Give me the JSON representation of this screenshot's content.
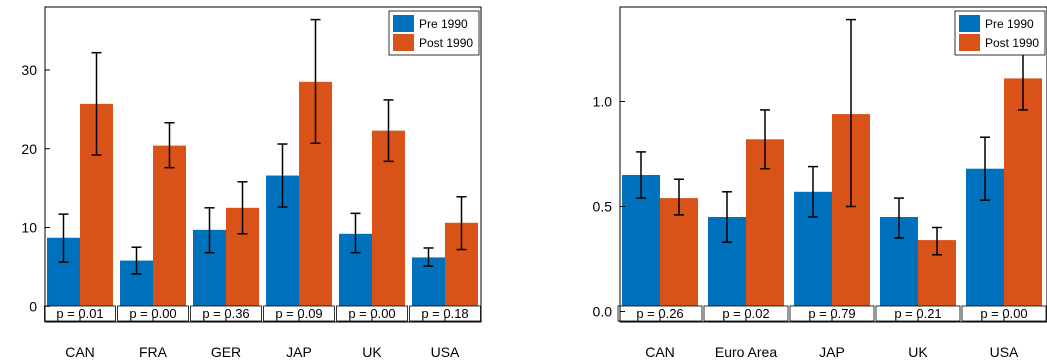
{
  "chart_data": [
    {
      "type": "bar",
      "categories": [
        "CAN",
        "FRA",
        "GER",
        "JAP",
        "UK",
        "USA"
      ],
      "series": [
        {
          "name": "Pre 1990",
          "color": "#0072BD",
          "values": [
            8.7,
            5.8,
            9.7,
            16.6,
            9.2,
            6.2
          ],
          "err_low": [
            5.6,
            4.1,
            6.8,
            12.6,
            6.8,
            5.1
          ],
          "err_high": [
            11.7,
            7.5,
            12.5,
            20.6,
            11.8,
            7.4
          ]
        },
        {
          "name": "Post 1990",
          "color": "#D95319",
          "values": [
            25.7,
            20.4,
            12.5,
            28.5,
            22.3,
            10.6
          ],
          "err_low": [
            19.2,
            17.6,
            9.2,
            20.7,
            18.4,
            7.2
          ],
          "err_high": [
            32.2,
            23.3,
            15.8,
            36.4,
            26.2,
            13.9
          ]
        }
      ],
      "pvalues": [
        "p = 0.01",
        "p = 0.00",
        "p = 0.36",
        "p = 0.09",
        "p = 0.00",
        "p = 0.18"
      ],
      "ylim": [
        -2,
        38
      ],
      "yticks": [
        0,
        10,
        20,
        30
      ],
      "ytick_labels": [
        "0",
        "10",
        "20",
        "30"
      ],
      "legend": "top-right",
      "grid": false
    },
    {
      "type": "bar",
      "categories": [
        "CAN",
        "Euro Area",
        "JAP",
        "UK",
        "USA"
      ],
      "series": [
        {
          "name": "Pre 1990",
          "color": "#0072BD",
          "values": [
            0.65,
            0.45,
            0.57,
            0.45,
            0.68
          ],
          "err_low": [
            0.54,
            0.33,
            0.45,
            0.35,
            0.53
          ],
          "err_high": [
            0.76,
            0.57,
            0.69,
            0.54,
            0.83
          ]
        },
        {
          "name": "Post 1990",
          "color": "#D95319",
          "values": [
            0.54,
            0.82,
            0.94,
            0.34,
            1.11
          ],
          "err_low": [
            0.46,
            0.68,
            0.5,
            0.27,
            0.96
          ],
          "err_high": [
            0.63,
            0.96,
            1.39,
            0.4,
            1.26
          ]
        }
      ],
      "pvalues": [
        "p = 0.26",
        "p = 0.02",
        "p = 0.79",
        "p = 0.21",
        "p = 0.00"
      ],
      "ylim": [
        -0.05,
        1.45
      ],
      "yticks": [
        0.0,
        0.5,
        1.0
      ],
      "ytick_labels": [
        "0.0",
        "0.5",
        "1.0"
      ],
      "legend": "top-right",
      "grid": false
    }
  ]
}
